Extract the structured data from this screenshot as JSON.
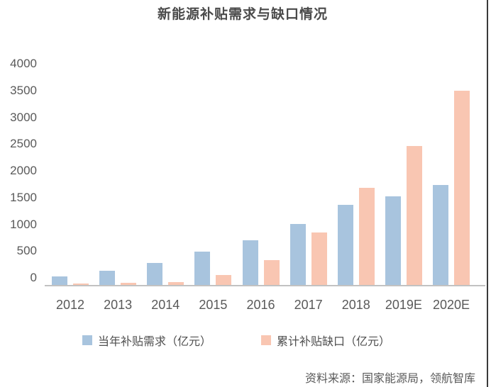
{
  "title": "新能源补贴需求与缺口情况",
  "source": "资料来源：国家能源局，领航智库",
  "colors": {
    "demand_blue": "#a8c4de",
    "gap_pink": "#f9c6b2",
    "axis_line": "#c2c2c2",
    "text_gray": "#595959",
    "title_gray": "#4a4a4a",
    "right_border": "#3a3a3a"
  },
  "chart_data": {
    "type": "bar",
    "title": "新能源补贴需求与缺口情况",
    "categories": [
      "2012",
      "2013",
      "2014",
      "2015",
      "2016",
      "2017",
      "2018",
      "2019E",
      "2020E"
    ],
    "series": [
      {
        "name": "当年补贴需求（亿元）",
        "color": "#a8c4de",
        "values": [
          150,
          250,
          400,
          600,
          800,
          1100,
          1450,
          1600,
          1800
        ]
      },
      {
        "name": "累计补贴缺口（亿元）",
        "color": "#f9c6b2",
        "values": [
          30,
          40,
          50,
          180,
          450,
          950,
          1750,
          2500,
          3500
        ]
      }
    ],
    "xlabel": "",
    "ylabel": "",
    "ylim": [
      0,
      4000
    ],
    "yticks": [
      0,
      500,
      1000,
      1500,
      2000,
      2500,
      3000,
      3500,
      4000
    ],
    "grid": false,
    "legend_position": "bottom"
  },
  "legend": {
    "items": [
      {
        "label": "当年补贴需求（亿元）"
      },
      {
        "label": "累计补贴缺口（亿元）"
      }
    ]
  }
}
